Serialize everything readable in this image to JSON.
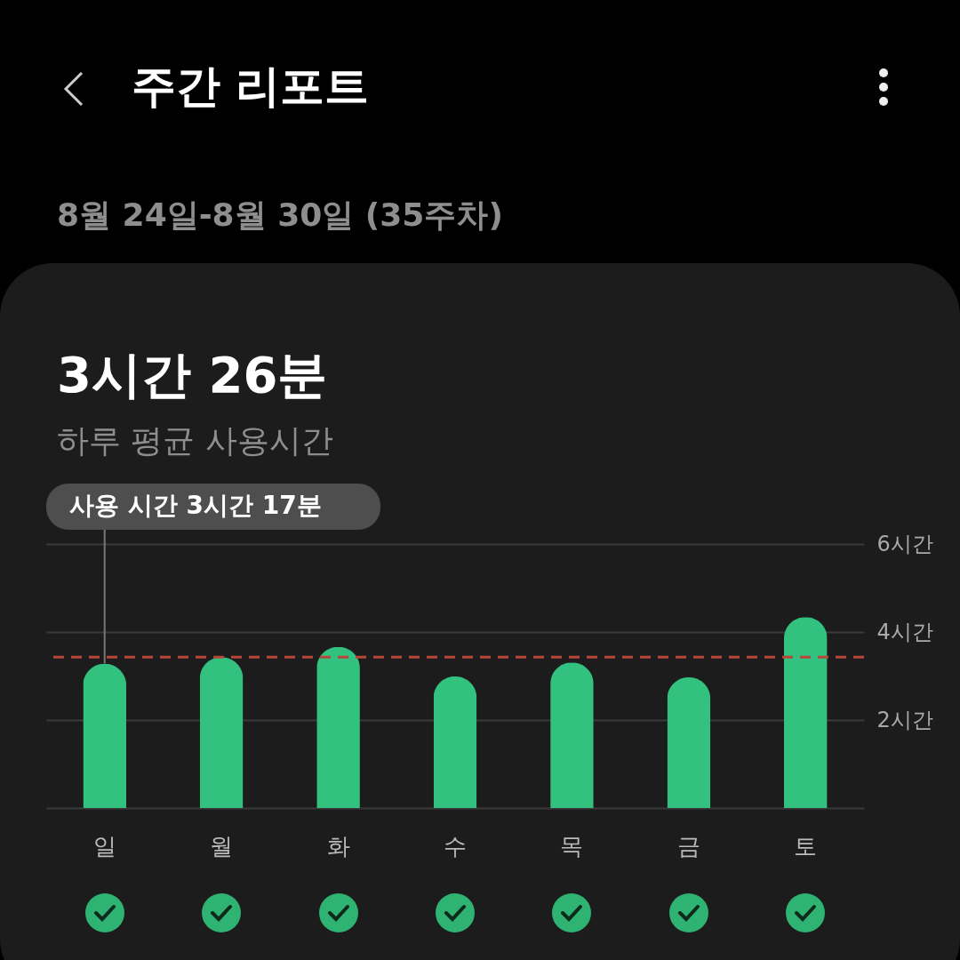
{
  "chart_data": {
    "type": "bar",
    "title": "주간 리포트",
    "subtitle": "8월 24일-8월 30일 (35주차)",
    "annotations": [
      "3시간 26분",
      "하루 평균 사용시간",
      {
        "text": "사용 시간 3시간 17분",
        "x": "일",
        "y": 3.28
      }
    ],
    "categories": [
      "일",
      "월",
      "화",
      "수",
      "목",
      "금",
      "토"
    ],
    "values": [
      3.28,
      3.43,
      3.66,
      2.99,
      3.31,
      2.97,
      4.34
    ],
    "color": "#33c17f",
    "ylim": [
      0,
      6
    ],
    "yticks": [
      {
        "value": 0,
        "label": null
      },
      {
        "value": 2,
        "label": "2시간"
      },
      {
        "value": 4,
        "label": "4시간"
      },
      {
        "value": 6,
        "label": "6시간"
      }
    ],
    "grid": "y",
    "ref_lines": [
      {
        "axis": "y",
        "value": 3.43,
        "label": null,
        "color": "#b5463a",
        "line_style": "dashed"
      }
    ]
  }
}
